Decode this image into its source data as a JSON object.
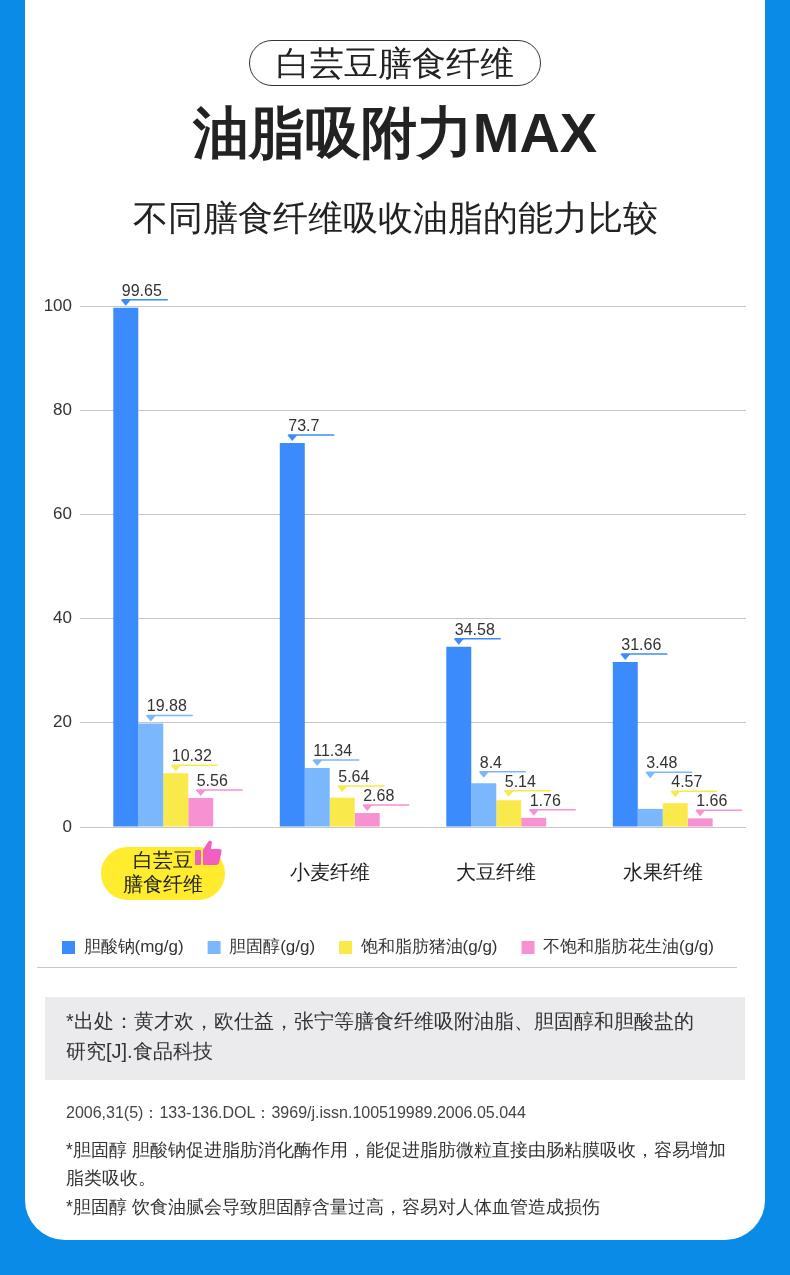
{
  "chart_data": {
    "type": "bar",
    "title": "油脂吸附力MAX",
    "subtitle": "不同膳食纤维吸收油脂的能力比较",
    "annotations": [
      "白芸豆膳食纤维",
      "*出处：黄才欢，欧仕益，张宁等膳食纤维吸附油脂、胆固醇和胆酸盐的研究[J].食品科技",
      "2006,31(5)：133-136.DOL：3969/j.issn.100519989.2006.05.044",
      "*胆固醇 胆酸钠促进脂肪消化酶作用，能促进脂肪微粒直接由肠粘膜吸收，容易增加脂类吸收。",
      "*胆固醇 饮食油腻会导致胆固醇含量过高，容易对人体血管造成损伤"
    ],
    "categories": [
      "白芸豆膳食纤维",
      "小麦纤维",
      "大豆纤维",
      "水果纤维"
    ],
    "series": [
      {
        "name": "胆酸钠(mg/g)",
        "color": "#3b8bfd",
        "values": [
          99.65,
          73.7,
          34.58,
          31.66
        ]
      },
      {
        "name": "胆固醇(g/g)",
        "color": "#7ab7fc",
        "values": [
          19.88,
          11.34,
          8.4,
          3.48
        ]
      },
      {
        "name": "饱和脂肪猪油(g/g)",
        "color": "#fae94b",
        "values": [
          10.32,
          5.64,
          5.14,
          4.57
        ]
      },
      {
        "name": "不饱和脂肪花生油(g/g)",
        "color": "#f791d1",
        "values": [
          5.56,
          2.68,
          1.76,
          1.66
        ]
      }
    ],
    "ylim": [
      0,
      100
    ],
    "yticks": [
      0,
      20,
      40,
      60,
      80,
      100
    ],
    "grid": "y",
    "legend": "bottom",
    "data_labels": true
  }
}
